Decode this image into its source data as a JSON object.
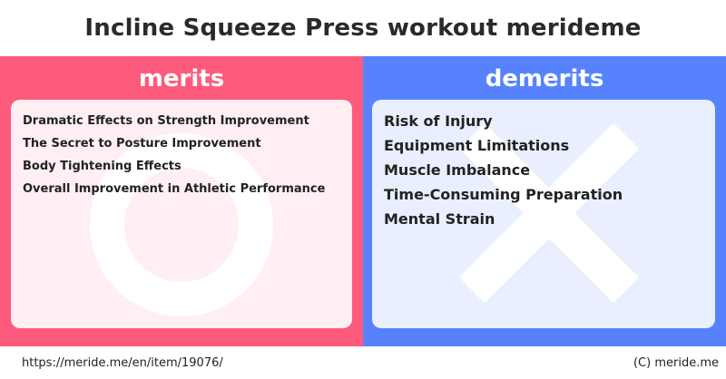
{
  "title": "Incline Squeeze Press workout merideme",
  "merits": {
    "heading": "merits",
    "items": [
      "Dramatic Effects on Strength Improvement",
      "The Secret to Posture Improvement",
      "Body Tightening Effects",
      "Overall Improvement in Athletic Performance"
    ]
  },
  "demerits": {
    "heading": "demerits",
    "items": [
      "Risk of Injury",
      "Equipment Limitations",
      "Muscle Imbalance",
      "Time-Consuming Preparation",
      "Mental Strain"
    ]
  },
  "footer": {
    "url": "https://meride.me/en/item/19076/",
    "copyright": "(C) meride.me"
  },
  "colors": {
    "merits_bg": "#fe5a7c",
    "merits_card": "#ffeff2",
    "demerits_bg": "#5683fd",
    "demerits_card": "#e9efff"
  },
  "icons": {
    "merits": "circle-icon",
    "demerits": "cross-icon"
  }
}
